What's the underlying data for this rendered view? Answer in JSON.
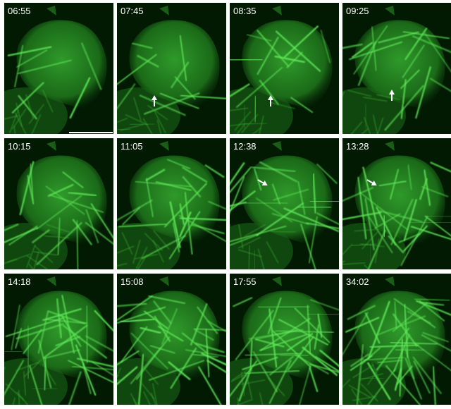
{
  "panels": [
    {
      "time": "06:55"
    },
    {
      "time": "07:45"
    },
    {
      "time": "08:35"
    },
    {
      "time": "09:25"
    },
    {
      "time": "10:15"
    },
    {
      "time": "11:05"
    },
    {
      "time": "12:38"
    },
    {
      "time": "13:28"
    },
    {
      "time": "14:18"
    },
    {
      "time": "15:08"
    },
    {
      "time": "17:55"
    },
    {
      "time": "34:02"
    }
  ]
}
